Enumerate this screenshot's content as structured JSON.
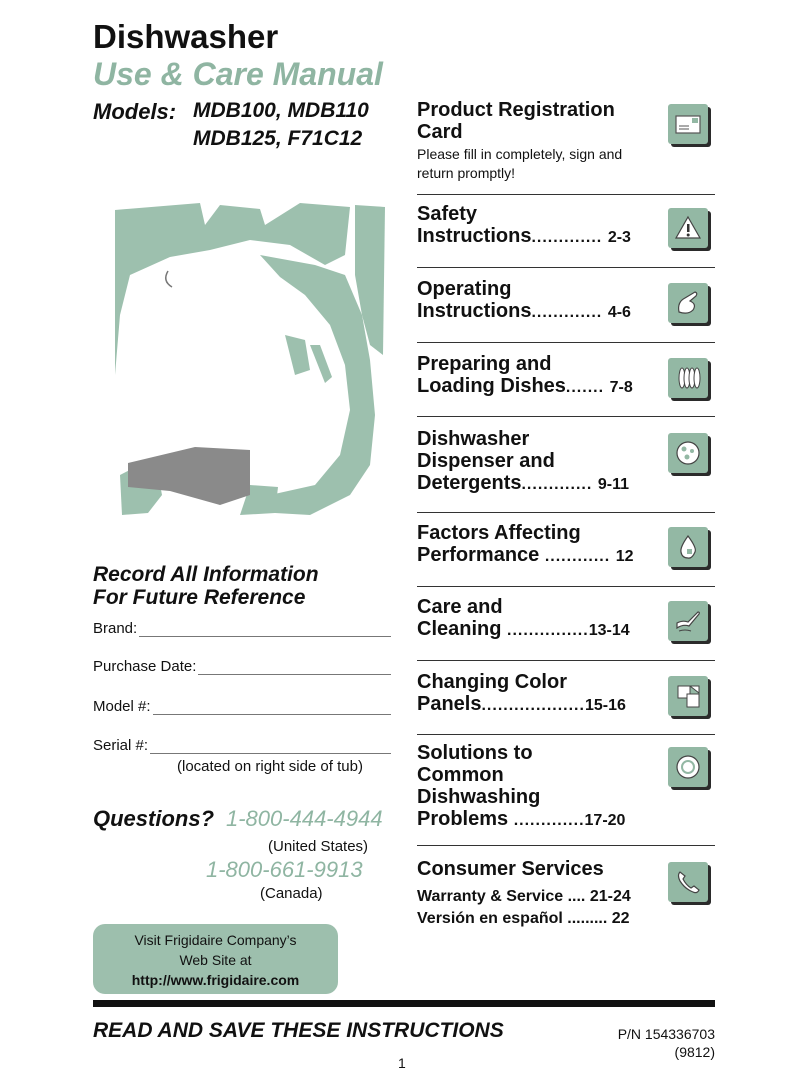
{
  "header": {
    "title": "Dishwasher",
    "subtitle": "Use & Care Manual",
    "models_label": "Models:",
    "models_line1": "MDB100, MDB110",
    "models_line2": "MDB125, F71C12"
  },
  "record": {
    "heading_line1": "Record All Information",
    "heading_line2": "For Future Reference",
    "fields": {
      "brand": "Brand:",
      "purchase_date": "Purchase Date:",
      "model": "Model #:",
      "serial": "Serial #:"
    },
    "serial_note": "(located on right side of tub)"
  },
  "contact": {
    "questions_label": "Questions?",
    "phone_us": "1-800-444-4944",
    "us_label": "(United States)",
    "phone_canada": "1-800-661-9913",
    "canada_label": "(Canada)",
    "web_line1": "Visit Frigidaire Company’s",
    "web_line2": "Web Site at",
    "web_url": "http://www.frigidaire.com"
  },
  "footer": {
    "read_save": "READ AND SAVE THESE INSTRUCTIONS",
    "part_number": "P/N 154336703",
    "revision": "(9812)",
    "page": "1"
  },
  "toc": {
    "registration": {
      "line1": "Product Registration",
      "line2": "Card",
      "desc1": "Please fill in completely, sign and",
      "desc2": "return promptly!",
      "icon": "envelope-icon"
    },
    "safety": {
      "line1": "Safety",
      "line2": "Instructions",
      "dots": ".............",
      "pages": "2-3",
      "icon": "warning-icon"
    },
    "operating": {
      "line1": "Operating",
      "line2": "Instructions",
      "dots": ".............",
      "pages": "4-6",
      "icon": "hand-pointer-icon"
    },
    "loading": {
      "line1": "Preparing and",
      "line2": "Loading Dishes",
      "dots": ".......",
      "pages": "7-8",
      "icon": "dish-rack-icon"
    },
    "dispenser": {
      "line1": "Dishwasher",
      "line2": "Dispenser and",
      "line3": "Detergents",
      "dots": ".............",
      "pages": "9-11",
      "icon": "dispenser-icon"
    },
    "factors": {
      "line1": "Factors Affecting",
      "line2": "Performance",
      "dots": "............",
      "pages": "12",
      "icon": "water-drop-icon"
    },
    "care": {
      "line1": "Care and",
      "line2": "Cleaning",
      "dots": "...............",
      "pages": "13-14",
      "icon": "cleaning-hand-icon"
    },
    "panels": {
      "line1": "Changing Color",
      "line2": "Panels",
      "dots": "...................",
      "pages": "15-16",
      "icon": "color-panel-icon"
    },
    "solutions": {
      "line1": "Solutions to",
      "line2": "Common",
      "line3": "Dishwashing",
      "line4": "Problems",
      "dots": ".............",
      "pages": "17-20",
      "icon": "plate-icon"
    },
    "consumer": {
      "heading": "Consumer Services",
      "warranty_label": "Warranty & Service",
      "warranty_dots": "....",
      "warranty_pages": "21-24",
      "spanish_label": "Versión en español",
      "spanish_dots": ".........",
      "spanish_pages": "22",
      "icon": "phone-icon"
    }
  },
  "colors": {
    "accent": "#8fb5a2",
    "icon_bg": "#93b8a4",
    "illustration_green": "#9dc0ae",
    "illustration_gray": "#8a8a8a"
  }
}
